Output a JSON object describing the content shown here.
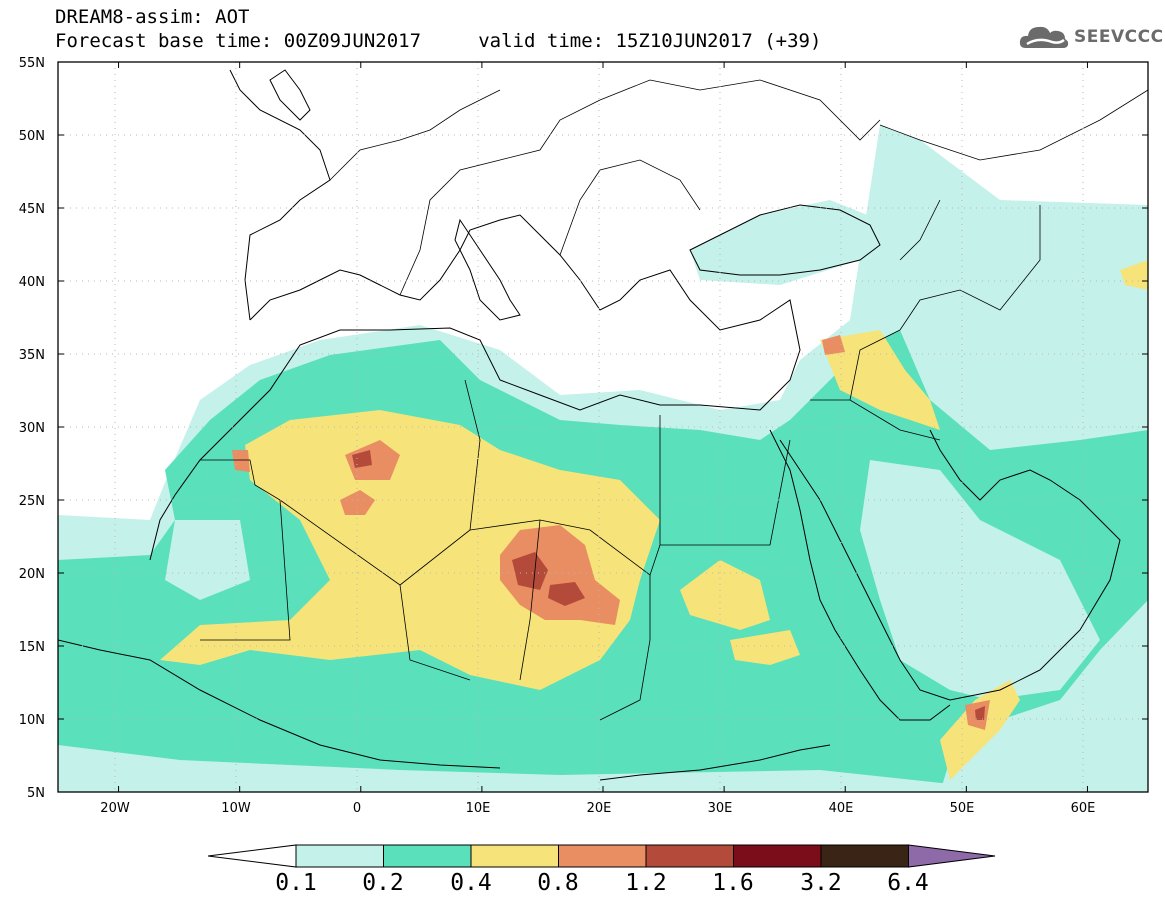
{
  "header": {
    "line1": "DREAM8-assim: AOT",
    "line2": "Forecast base time: 00Z09JUN2017     valid time: 15Z10JUN2017 (+39)"
  },
  "logo": {
    "text": "SEEVCCC",
    "icon": "cloud-icon"
  },
  "map": {
    "lon_labels": [
      "20W",
      "10W",
      "0",
      "10E",
      "20E",
      "30E",
      "40E",
      "50E",
      "60E"
    ],
    "lat_labels": [
      "55N",
      "50N",
      "45N",
      "40N",
      "35N",
      "30N",
      "25N",
      "20N",
      "15N",
      "10N",
      "5N"
    ],
    "lon_range": [
      -25,
      65
    ],
    "lat_range": [
      5,
      55
    ],
    "grid": "dotted"
  },
  "colorbar": {
    "labels": [
      "0.1",
      "0.2",
      "0.4",
      "0.8",
      "1.2",
      "1.6",
      "3.2",
      "6.4"
    ],
    "colors": [
      "#ffffff",
      "#c4f1ea",
      "#5ae0bb",
      "#f6e47a",
      "#e98d63",
      "#b44a3a",
      "#7b0d1a",
      "#3a2416",
      "#8f6aa9"
    ]
  }
}
